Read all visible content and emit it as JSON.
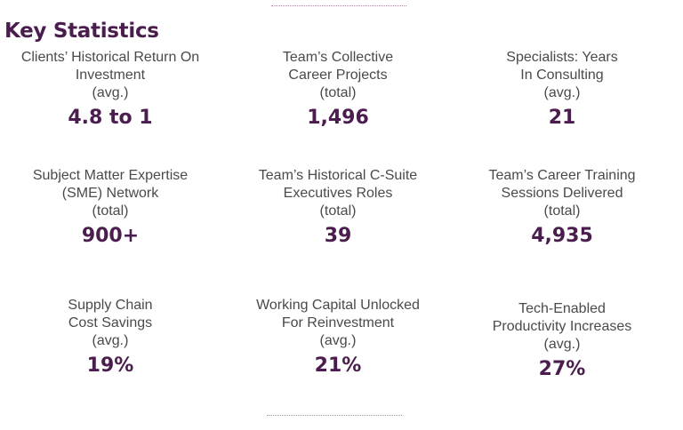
{
  "title": "Key Statistics",
  "stats": [
    {
      "label_lines": [
        "Clients’ Historical Return On",
        "Investment"
      ],
      "qualifier": "(avg.)",
      "value": "4.8 to 1"
    },
    {
      "label_lines": [
        "Team’s Collective",
        "Career Projects"
      ],
      "qualifier": "(total)",
      "value": "1,496"
    },
    {
      "label_lines": [
        "Specialists: Years",
        "In Consulting"
      ],
      "qualifier": "(avg.)",
      "value": "21"
    },
    {
      "label_lines": [
        "Subject Matter Expertise",
        "(SME) Network"
      ],
      "qualifier": "(total)",
      "value": "900+"
    },
    {
      "label_lines": [
        "Team’s Historical C-Suite",
        "Executives Roles"
      ],
      "qualifier": "(total)",
      "value": "39"
    },
    {
      "label_lines": [
        "Team’s Career Training",
        "Sessions Delivered"
      ],
      "qualifier": "(total)",
      "value": "4,935"
    },
    {
      "label_lines": [
        "Supply Chain",
        "Cost Savings"
      ],
      "qualifier": "(avg.)",
      "value": "19%"
    },
    {
      "label_lines": [
        "Working Capital Unlocked",
        "For Reinvestment"
      ],
      "qualifier": "(avg.)",
      "value": "21%"
    },
    {
      "label_lines": [
        "Tech-Enabled",
        "Productivity Increases"
      ],
      "qualifier": "(avg.)",
      "value": "27%"
    }
  ]
}
